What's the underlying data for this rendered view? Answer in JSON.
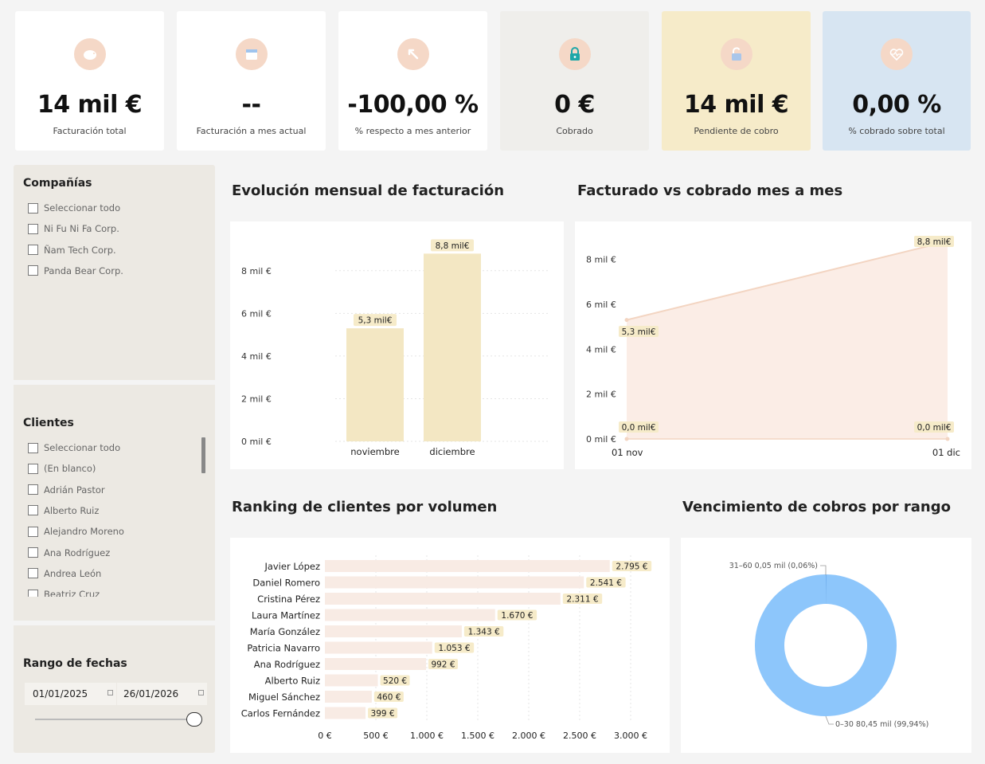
{
  "kpis": [
    {
      "value": "14 mil €",
      "label": "Facturación total",
      "icon": "piggy-bank-icon",
      "bg": "#ffffff"
    },
    {
      "value": "--",
      "label": "Facturación a mes actual",
      "icon": "calendar-icon",
      "bg": "#ffffff"
    },
    {
      "value": "-100,00 %",
      "label": "% respecto a mes anterior",
      "icon": "arrow-icon",
      "bg": "#ffffff"
    },
    {
      "value": "0 €",
      "label": "Cobrado",
      "icon": "lock-icon",
      "bg": "#efeeeb"
    },
    {
      "value": "14 mil €",
      "label": "Pendiente de cobro",
      "icon": "unlock-icon",
      "bg": "#f6ebc9"
    },
    {
      "value": "0,00 %",
      "label": "% cobrado sobre total",
      "icon": "heart-pulse-icon",
      "bg": "#d7e5f2"
    }
  ],
  "companies": {
    "title": "Compañías",
    "items": [
      "Seleccionar todo",
      "Ni Fu Ni Fa Corp.",
      "Ñam Tech Corp.",
      "Panda Bear Corp."
    ]
  },
  "clients": {
    "title": "Clientes",
    "items": [
      "Seleccionar todo",
      "(En blanco)",
      "Adrián Pastor",
      "Alberto Ruiz",
      "Alejandro Moreno",
      "Ana Rodríguez",
      "Andrea León",
      "Beatriz Cruz"
    ]
  },
  "dates": {
    "title": "Rango de fechas",
    "from": "01/01/2025",
    "to": "26/01/2026"
  },
  "titles": {
    "monthly": "Evolución mensual de facturación",
    "vs": "Facturado vs cobrado mes a mes",
    "ranking": "Ranking de clientes por volumen",
    "due": "Vencimiento de cobros por rango"
  },
  "chart_data": [
    {
      "id": "monthly",
      "type": "bar",
      "title": "Evolución mensual de facturación",
      "categories": [
        "noviembre",
        "diciembre"
      ],
      "values": [
        5.3,
        8.8
      ],
      "data_labels": [
        "5,3 mil€",
        "8,8 mil€"
      ],
      "ylim": [
        0,
        9
      ],
      "yticks": [
        0,
        2,
        4,
        6,
        8
      ],
      "ytick_labels": [
        "0 mil €",
        "2 mil €",
        "4 mil €",
        "6 mil €",
        "8 mil €"
      ],
      "color": "#f3e7c3"
    },
    {
      "id": "vs",
      "type": "area",
      "title": "Facturado vs cobrado mes a mes",
      "x": [
        "01 nov",
        "01 dic"
      ],
      "series": [
        {
          "name": "Facturado",
          "values": [
            5.3,
            8.8
          ],
          "labels": [
            "5,3 mil€",
            "8,8 mil€"
          ],
          "color": "#f3d5c2"
        },
        {
          "name": "Cobrado",
          "values": [
            0,
            0
          ],
          "labels": [
            "0,0 mil€",
            "0,0 mil€"
          ],
          "color": "#f3d5c2"
        }
      ],
      "ylim": [
        0,
        8.8
      ],
      "yticks": [
        0,
        2,
        4,
        6,
        8
      ],
      "ytick_labels": [
        "0 mil €",
        "2 mil €",
        "4 mil €",
        "6 mil €",
        "8 mil €"
      ]
    },
    {
      "id": "ranking",
      "type": "bar",
      "orientation": "horizontal",
      "title": "Ranking de clientes por volumen",
      "categories": [
        "Javier López",
        "Daniel Romero",
        "Cristina Pérez",
        "Laura Martínez",
        "María González",
        "Patricia Navarro",
        "Ana Rodríguez",
        "Alberto Ruiz",
        "Miguel Sánchez",
        "Carlos Fernández"
      ],
      "values": [
        2795,
        2541,
        2311,
        1670,
        1343,
        1053,
        992,
        520,
        460,
        399
      ],
      "data_labels": [
        "2.795 €",
        "2.541 €",
        "2.311 €",
        "1.670 €",
        "1.343 €",
        "1.053 €",
        "992 €",
        "520 €",
        "460 €",
        "399 €"
      ],
      "xlim": [
        0,
        3000
      ],
      "xticks": [
        0,
        500,
        1000,
        1500,
        2000,
        2500,
        3000
      ],
      "xtick_labels": [
        "0 €",
        "500 €",
        "1.000 €",
        "1.500 €",
        "2.000 €",
        "2.500 €",
        "3.000 €"
      ],
      "color": "#f8ebe4"
    },
    {
      "id": "due",
      "type": "pie",
      "title": "Vencimiento de cobros por rango",
      "slices": [
        {
          "label": "0–30",
          "value": 80.45,
          "text": "0–30 80,45 mil (99,94%)",
          "color": "#8dc6fb"
        },
        {
          "label": "31–60",
          "value": 0.05,
          "text": "31–60 0,05 mil (0,06%)",
          "color": "#3d86d6"
        }
      ]
    }
  ]
}
